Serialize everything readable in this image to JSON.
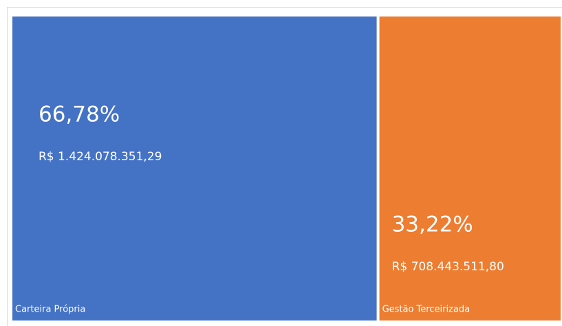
{
  "chart_data": {
    "type": "treemap",
    "categories": [
      "Carteira Própria",
      "Gestão Terceirizada"
    ],
    "values": [
      66.78,
      33.22
    ],
    "value_labels": [
      "66,78%",
      "33,22%"
    ],
    "amounts": [
      1424078351.29,
      708443511.8
    ],
    "amount_labels": [
      "R$ 1.424.078.351,29",
      "R$ 708.443.511,80"
    ],
    "colors": [
      "#4472c4",
      "#ed7d31"
    ]
  }
}
